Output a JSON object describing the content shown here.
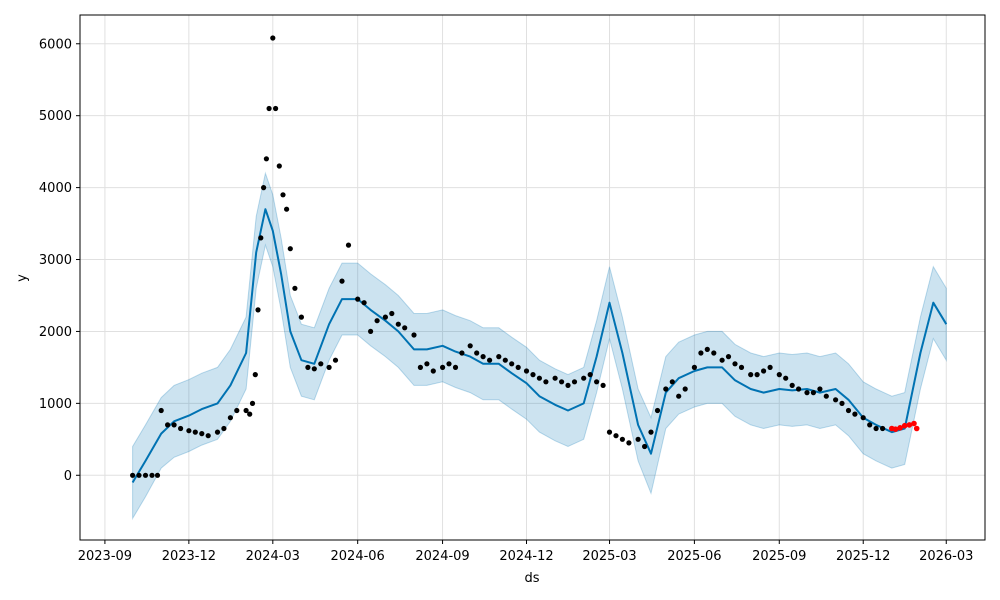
{
  "chart_data": {
    "type": "line",
    "xlabel": "ds",
    "ylabel": "y",
    "xlim": [
      "2023-08-05",
      "2026-04-12"
    ],
    "ylim": [
      -900,
      6400
    ],
    "x_ticks": [
      "2023-09",
      "2023-12",
      "2024-03",
      "2024-06",
      "2024-09",
      "2024-12",
      "2025-03",
      "2025-06",
      "2025-09",
      "2025-12",
      "2026-03"
    ],
    "y_ticks": [
      0,
      1000,
      2000,
      3000,
      4000,
      5000,
      6000
    ],
    "grid": true,
    "colors": {
      "forecast_line": "#0072B2",
      "uncertainty_band": "#0072B2",
      "observed_points": "#000000",
      "highlighted_points": "#ff0000"
    },
    "series": [
      {
        "role": "forecast",
        "x": [
          "2023-10-01",
          "2023-10-15",
          "2023-11-01",
          "2023-11-15",
          "2023-12-01",
          "2023-12-15",
          "2024-01-01",
          "2024-01-15",
          "2024-02-01",
          "2024-02-12",
          "2024-02-22",
          "2024-03-01",
          "2024-03-10",
          "2024-03-20",
          "2024-04-01",
          "2024-04-15",
          "2024-05-01",
          "2024-05-15",
          "2024-06-01",
          "2024-06-15",
          "2024-07-01",
          "2024-07-15",
          "2024-08-01",
          "2024-08-15",
          "2024-09-01",
          "2024-09-15",
          "2024-10-01",
          "2024-10-15",
          "2024-11-01",
          "2024-11-15",
          "2024-12-01",
          "2024-12-15",
          "2025-01-01",
          "2025-01-15",
          "2025-02-01",
          "2025-02-15",
          "2025-03-01",
          "2025-03-15",
          "2025-04-01",
          "2025-04-15",
          "2025-05-01",
          "2025-05-15",
          "2025-06-01",
          "2025-06-15",
          "2025-07-01",
          "2025-07-15",
          "2025-08-01",
          "2025-08-15",
          "2025-09-01",
          "2025-09-15",
          "2025-10-01",
          "2025-10-15",
          "2025-11-01",
          "2025-11-15",
          "2025-12-01",
          "2025-12-15",
          "2026-01-01",
          "2026-01-15",
          "2026-02-01",
          "2026-02-15",
          "2026-03-01"
        ],
        "y": [
          -100,
          200,
          580,
          750,
          830,
          920,
          1000,
          1250,
          1700,
          3100,
          3700,
          3400,
          2800,
          2000,
          1600,
          1550,
          2100,
          2450,
          2450,
          2300,
          2150,
          2000,
          1750,
          1750,
          1800,
          1720,
          1650,
          1550,
          1550,
          1420,
          1280,
          1100,
          980,
          900,
          1000,
          1650,
          2400,
          1700,
          700,
          300,
          1150,
          1350,
          1450,
          1500,
          1500,
          1320,
          1200,
          1150,
          1200,
          1180,
          1200,
          1150,
          1200,
          1050,
          800,
          700,
          600,
          650,
          1700,
          2400,
          2100
        ]
      },
      {
        "role": "uncertainty_band",
        "x": [
          "2023-10-01",
          "2023-10-15",
          "2023-11-01",
          "2023-11-15",
          "2023-12-01",
          "2023-12-15",
          "2024-01-01",
          "2024-01-15",
          "2024-02-01",
          "2024-02-12",
          "2024-02-22",
          "2024-03-01",
          "2024-03-10",
          "2024-03-20",
          "2024-04-01",
          "2024-04-15",
          "2024-05-01",
          "2024-05-15",
          "2024-06-01",
          "2024-06-15",
          "2024-07-01",
          "2024-07-15",
          "2024-08-01",
          "2024-08-15",
          "2024-09-01",
          "2024-09-15",
          "2024-10-01",
          "2024-10-15",
          "2024-11-01",
          "2024-11-15",
          "2024-12-01",
          "2024-12-15",
          "2025-01-01",
          "2025-01-15",
          "2025-02-01",
          "2025-02-15",
          "2025-03-01",
          "2025-03-15",
          "2025-04-01",
          "2025-04-15",
          "2025-05-01",
          "2025-05-15",
          "2025-06-01",
          "2025-06-15",
          "2025-07-01",
          "2025-07-15",
          "2025-08-01",
          "2025-08-15",
          "2025-09-01",
          "2025-09-15",
          "2025-10-01",
          "2025-10-15",
          "2025-11-01",
          "2025-11-15",
          "2025-12-01",
          "2025-12-15",
          "2026-01-01",
          "2026-01-15",
          "2026-02-01",
          "2026-02-15",
          "2026-03-01"
        ],
        "lower": [
          -600,
          -300,
          100,
          250,
          330,
          420,
          500,
          750,
          1200,
          2600,
          3200,
          2900,
          2300,
          1500,
          1100,
          1050,
          1600,
          1950,
          1950,
          1800,
          1650,
          1500,
          1250,
          1250,
          1300,
          1220,
          1150,
          1050,
          1050,
          920,
          780,
          600,
          480,
          400,
          500,
          1150,
          1900,
          1200,
          200,
          -250,
          650,
          850,
          950,
          1000,
          1000,
          820,
          700,
          650,
          700,
          680,
          700,
          650,
          700,
          550,
          300,
          200,
          100,
          150,
          1200,
          1900,
          1600
        ],
        "upper": [
          400,
          700,
          1080,
          1250,
          1330,
          1420,
          1500,
          1750,
          2200,
          3600,
          4200,
          3900,
          3300,
          2500,
          2100,
          2050,
          2600,
          2950,
          2950,
          2800,
          2650,
          2500,
          2250,
          2250,
          2300,
          2220,
          2150,
          2050,
          2050,
          1920,
          1780,
          1600,
          1480,
          1400,
          1500,
          2150,
          2900,
          2200,
          1200,
          800,
          1650,
          1850,
          1950,
          2000,
          2000,
          1820,
          1700,
          1650,
          1700,
          1680,
          1700,
          1650,
          1700,
          1550,
          1300,
          1200,
          1100,
          1150,
          2200,
          2900,
          2600
        ]
      },
      {
        "role": "observed",
        "x": [
          "2023-10-01",
          "2023-10-08",
          "2023-10-15",
          "2023-10-22",
          "2023-10-28",
          "2023-11-01",
          "2023-11-08",
          "2023-11-15",
          "2023-11-22",
          "2023-12-01",
          "2023-12-08",
          "2023-12-15",
          "2023-12-22",
          "2024-01-01",
          "2024-01-08",
          "2024-01-15",
          "2024-01-22",
          "2024-02-01",
          "2024-02-05",
          "2024-02-08",
          "2024-02-11",
          "2024-02-14",
          "2024-02-17",
          "2024-02-20",
          "2024-02-23",
          "2024-02-26",
          "2024-03-01",
          "2024-03-04",
          "2024-03-08",
          "2024-03-12",
          "2024-03-16",
          "2024-03-20",
          "2024-03-25",
          "2024-04-01",
          "2024-04-08",
          "2024-04-15",
          "2024-04-22",
          "2024-05-01",
          "2024-05-08",
          "2024-05-15",
          "2024-05-22",
          "2024-06-01",
          "2024-06-08",
          "2024-06-15",
          "2024-06-22",
          "2024-07-01",
          "2024-07-08",
          "2024-07-15",
          "2024-07-22",
          "2024-08-01",
          "2024-08-08",
          "2024-08-15",
          "2024-08-22",
          "2024-09-01",
          "2024-09-08",
          "2024-09-15",
          "2024-09-22",
          "2024-10-01",
          "2024-10-08",
          "2024-10-15",
          "2024-10-22",
          "2024-11-01",
          "2024-11-08",
          "2024-11-15",
          "2024-11-22",
          "2024-12-01",
          "2024-12-08",
          "2024-12-15",
          "2024-12-22",
          "2025-01-01",
          "2025-01-08",
          "2025-01-15",
          "2025-01-22",
          "2025-02-01",
          "2025-02-08",
          "2025-02-15",
          "2025-02-22",
          "2025-03-01",
          "2025-03-08",
          "2025-03-15",
          "2025-03-22",
          "2025-04-01",
          "2025-04-08",
          "2025-04-15",
          "2025-04-22",
          "2025-05-01",
          "2025-05-08",
          "2025-05-15",
          "2025-05-22",
          "2025-06-01",
          "2025-06-08",
          "2025-06-15",
          "2025-06-22",
          "2025-07-01",
          "2025-07-08",
          "2025-07-15",
          "2025-07-22",
          "2025-08-01",
          "2025-08-08",
          "2025-08-15",
          "2025-08-22",
          "2025-09-01",
          "2025-09-08",
          "2025-09-15",
          "2025-09-22",
          "2025-10-01",
          "2025-10-08",
          "2025-10-15",
          "2025-10-22",
          "2025-11-01",
          "2025-11-08",
          "2025-11-15",
          "2025-11-22",
          "2025-12-01",
          "2025-12-08",
          "2025-12-15",
          "2025-12-22"
        ],
        "y": [
          0,
          0,
          0,
          0,
          0,
          900,
          700,
          700,
          650,
          620,
          600,
          580,
          550,
          600,
          650,
          800,
          900,
          900,
          850,
          1000,
          1400,
          2300,
          3300,
          4000,
          4400,
          5100,
          6080,
          5100,
          4300,
          3900,
          3700,
          3150,
          2600,
          2200,
          1500,
          1480,
          1550,
          1500,
          1600,
          2700,
          3200,
          2450,
          2400,
          2000,
          2150,
          2200,
          2250,
          2100,
          2050,
          1950,
          1500,
          1550,
          1450,
          1500,
          1550,
          1500,
          1700,
          1800,
          1700,
          1650,
          1600,
          1650,
          1600,
          1550,
          1500,
          1450,
          1400,
          1350,
          1300,
          1350,
          1300,
          1250,
          1300,
          1350,
          1400,
          1300,
          1250,
          600,
          550,
          500,
          450,
          500,
          400,
          600,
          900,
          1200,
          1300,
          1100,
          1200,
          1500,
          1700,
          1750,
          1700,
          1600,
          1650,
          1550,
          1500,
          1400,
          1400,
          1450,
          1500,
          1400,
          1350,
          1250,
          1200,
          1150,
          1150,
          1200,
          1100,
          1050,
          1000,
          900,
          850,
          800,
          700,
          650,
          650
        ],
        "color": "#000000"
      },
      {
        "role": "highlighted",
        "x": [
          "2026-01-01",
          "2026-01-05",
          "2026-01-10",
          "2026-01-15",
          "2026-01-20",
          "2026-01-25",
          "2026-01-28"
        ],
        "y": [
          650,
          640,
          660,
          690,
          700,
          720,
          650
        ],
        "color": "#ff0000"
      }
    ]
  }
}
